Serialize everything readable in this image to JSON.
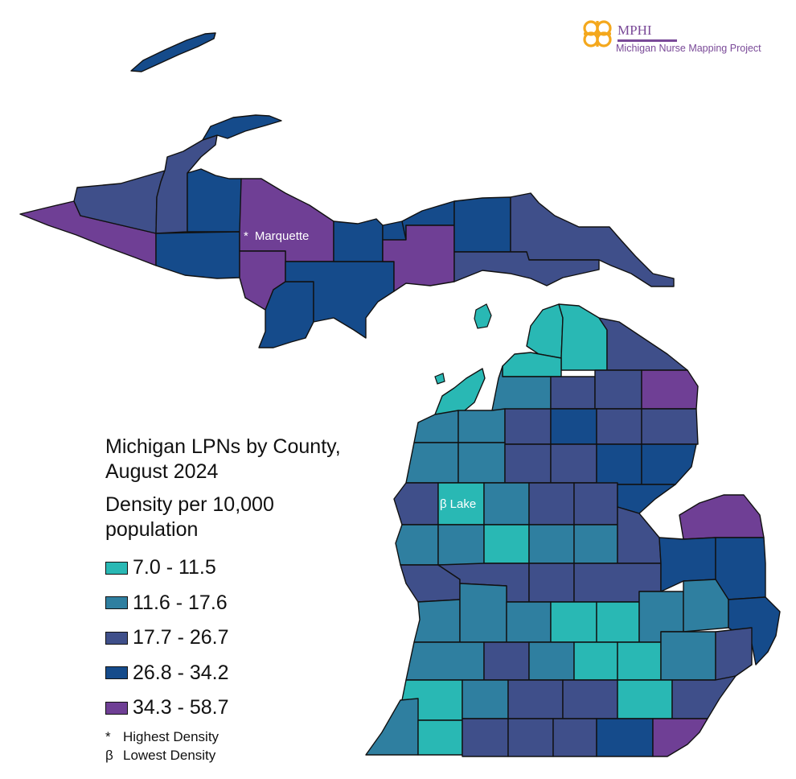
{
  "logo": {
    "name": "MPHI",
    "subtitle": "Michigan Nurse Mapping Project",
    "icon": "mphi-knot-logo-icon",
    "colors": {
      "orange": "#f4a81d",
      "purple": "#7a4a98"
    }
  },
  "map_labels": {
    "marquette": {
      "marker": "*",
      "name": "Marquette"
    },
    "lake": {
      "marker": "β",
      "name": "Lake"
    }
  },
  "legend": {
    "title": "Michigan LPNs by County, August 2024",
    "subtitle": "Density per 10,000 population",
    "items": [
      {
        "range": "7.0 - 11.5",
        "color": "#29b8b4"
      },
      {
        "range": "11.6 - 17.6",
        "color": "#2f7fa0"
      },
      {
        "range": "17.7 - 26.7",
        "color": "#3f4f8a"
      },
      {
        "range": "26.8 - 34.2",
        "color": "#154b8b"
      },
      {
        "range": "34.3 - 58.7",
        "color": "#6f3f95"
      }
    ],
    "notes": [
      {
        "symbol": "*",
        "text": "Highest Density"
      },
      {
        "symbol": "β",
        "text": "Lowest Density"
      }
    ]
  }
}
